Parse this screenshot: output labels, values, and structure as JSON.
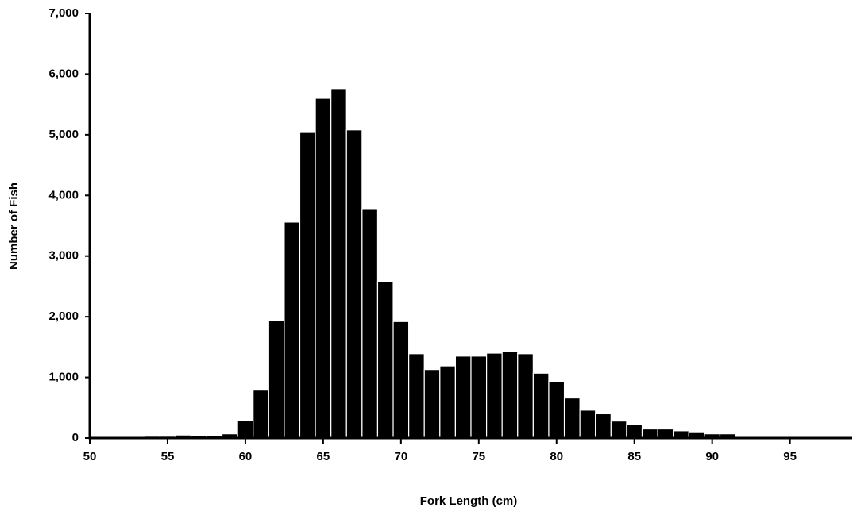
{
  "chart_data": {
    "type": "histogram",
    "x_label": "Fork Length (cm)",
    "y_label": "Number of Fish",
    "bins": [
      50.5,
      51.5,
      52.5,
      53.5,
      54.5,
      55.5,
      56.5,
      57.5,
      58.5,
      59.5,
      60.5,
      61.5,
      62.5,
      63.5,
      64.5,
      65.5,
      66.5,
      67.5,
      68.5,
      69.5,
      70.5,
      71.5,
      72.5,
      73.5,
      74.5,
      75.5,
      76.5,
      77.5,
      78.5,
      79.5,
      80.5,
      81.5,
      82.5,
      83.5,
      84.5,
      85.5,
      86.5,
      87.5,
      88.5,
      89.5,
      90.5,
      91.5,
      92.5,
      93.5,
      94.5,
      95.5,
      96.5,
      97.5,
      98.5
    ],
    "values": [
      10,
      10,
      20,
      30,
      30,
      50,
      40,
      40,
      70,
      290,
      790,
      1940,
      3560,
      5050,
      5600,
      5760,
      5080,
      3770,
      2580,
      1920,
      1390,
      1130,
      1190,
      1350,
      1350,
      1400,
      1430,
      1390,
      1070,
      930,
      660,
      460,
      400,
      280,
      220,
      150,
      150,
      120,
      90,
      70,
      70,
      20,
      15,
      10,
      10,
      10,
      10,
      10
    ],
    "color": "#000000",
    "xlim": [
      50,
      99
    ],
    "xticks": [
      50,
      55,
      60,
      65,
      70,
      75,
      80,
      85,
      90,
      95
    ],
    "ylim": [
      0,
      7000
    ],
    "yticks": [
      0,
      {
        "value": 1000,
        "label": "1,000"
      },
      {
        "value": 2000,
        "label": "2,000"
      },
      {
        "value": 3000,
        "label": "3,000"
      },
      {
        "value": 4000,
        "label": "4,000"
      },
      {
        "value": 5000,
        "label": "5,000"
      },
      {
        "value": 6000,
        "label": "6,000"
      },
      {
        "value": 7000,
        "label": "7,000"
      }
    ],
    "grid": false
  }
}
